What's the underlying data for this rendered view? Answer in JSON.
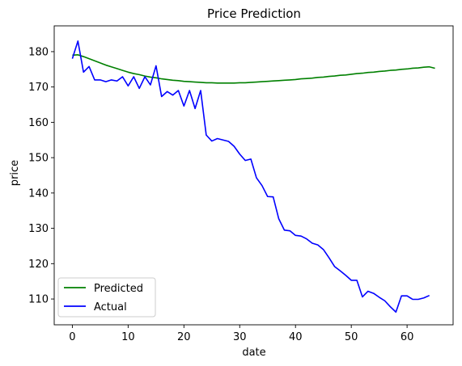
{
  "chart_data": {
    "type": "line",
    "title": "Price Prediction",
    "xlabel": "date",
    "ylabel": "price",
    "xlim": [
      -3.25,
      68.25
    ],
    "ylim": [
      102.7,
      187.3
    ],
    "xticks": [
      0,
      10,
      20,
      30,
      40,
      50,
      60
    ],
    "yticks": [
      110,
      120,
      130,
      140,
      150,
      160,
      170,
      180
    ],
    "grid": false,
    "legend_position": "lower-left",
    "series": [
      {
        "name": "Predicted",
        "color": "#008000",
        "x": [
          0,
          1,
          2,
          3,
          4,
          5,
          6,
          7,
          8,
          9,
          10,
          11,
          12,
          13,
          14,
          15,
          16,
          17,
          18,
          19,
          20,
          21,
          22,
          23,
          24,
          25,
          26,
          27,
          28,
          29,
          30,
          31,
          32,
          33,
          34,
          35,
          36,
          37,
          38,
          39,
          40,
          41,
          42,
          43,
          44,
          45,
          46,
          47,
          48,
          49,
          50,
          51,
          52,
          53,
          54,
          55,
          56,
          57,
          58,
          59,
          60,
          61,
          62,
          63,
          64,
          65
        ],
        "y": [
          179.0,
          179.1,
          178.6,
          178.0,
          177.4,
          176.8,
          176.2,
          175.7,
          175.2,
          174.7,
          174.2,
          173.8,
          173.5,
          173.1,
          172.8,
          172.6,
          172.3,
          172.1,
          171.9,
          171.8,
          171.6,
          171.5,
          171.4,
          171.3,
          171.2,
          171.2,
          171.1,
          171.1,
          171.1,
          171.1,
          171.2,
          171.2,
          171.3,
          171.4,
          171.5,
          171.6,
          171.7,
          171.8,
          171.9,
          172.0,
          172.1,
          172.3,
          172.4,
          172.5,
          172.7,
          172.8,
          173.0,
          173.1,
          173.3,
          173.4,
          173.6,
          173.8,
          173.9,
          174.1,
          174.2,
          174.4,
          174.5,
          174.7,
          174.8,
          175.0,
          175.1,
          175.3,
          175.4,
          175.6,
          175.7,
          175.3
        ]
      },
      {
        "name": "Actual",
        "color": "#0000ff",
        "x": [
          0,
          1,
          2,
          3,
          4,
          5,
          6,
          7,
          8,
          9,
          10,
          11,
          12,
          13,
          14,
          15,
          16,
          17,
          18,
          19,
          20,
          21,
          22,
          23,
          24,
          25,
          26,
          27,
          28,
          29,
          30,
          31,
          32,
          33,
          34,
          35,
          36,
          37,
          38,
          39,
          40,
          41,
          42,
          43,
          44,
          45,
          46,
          47,
          48,
          49,
          50,
          51,
          52,
          53,
          54,
          55,
          56,
          57,
          58,
          59,
          60,
          61,
          62,
          63,
          64
        ],
        "y": [
          178.0,
          183.0,
          174.2,
          175.8,
          172.0,
          172.0,
          171.5,
          172.0,
          171.7,
          172.9,
          170.3,
          172.9,
          169.6,
          172.9,
          170.6,
          176.0,
          167.3,
          168.7,
          167.7,
          169.0,
          164.6,
          169.0,
          163.9,
          169.0,
          156.4,
          154.7,
          155.4,
          155.0,
          154.6,
          153.2,
          151.0,
          149.2,
          149.6,
          144.3,
          142.1,
          139.0,
          138.9,
          132.7,
          129.5,
          129.3,
          128.0,
          127.8,
          127.0,
          125.8,
          125.3,
          124.0,
          121.7,
          119.2,
          118.0,
          116.7,
          115.3,
          115.3,
          110.6,
          112.2,
          111.6,
          110.5,
          109.5,
          107.8,
          106.3,
          110.9,
          110.9,
          109.9,
          109.9,
          110.3,
          111.0
        ]
      }
    ]
  }
}
